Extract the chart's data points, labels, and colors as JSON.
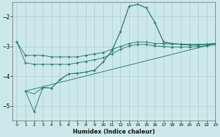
{
  "xlabel": "Humidex (Indice chaleur)",
  "bg_color": "#cce8ea",
  "grid_color": "#aacccc",
  "line_color": "#2a7a6a",
  "xlim": [
    -0.5,
    23
  ],
  "ylim": [
    -5.5,
    -1.5
  ],
  "yticks": [
    -5,
    -4,
    -3,
    -2
  ],
  "xticks": [
    0,
    1,
    2,
    3,
    4,
    5,
    6,
    7,
    8,
    9,
    10,
    11,
    12,
    13,
    14,
    15,
    16,
    17,
    18,
    19,
    20,
    21,
    22,
    23
  ],
  "line1_x": [
    0,
    1,
    2,
    3,
    4,
    5,
    6,
    7,
    8,
    9,
    10,
    11,
    12,
    13,
    14,
    15,
    16,
    17,
    18,
    19,
    20,
    21,
    22,
    23
  ],
  "line1_y": [
    -2.85,
    -3.3,
    -3.3,
    -3.3,
    -3.35,
    -3.35,
    -3.35,
    -3.35,
    -3.3,
    -3.25,
    -3.2,
    -3.1,
    -3.0,
    -2.9,
    -2.85,
    -2.85,
    -2.9,
    -2.9,
    -2.92,
    -2.92,
    -2.93,
    -2.93,
    -2.92,
    -2.9
  ],
  "line2_x": [
    0,
    1,
    2,
    3,
    4,
    5,
    6,
    7,
    8,
    9,
    10,
    11,
    12,
    13,
    14,
    15,
    16,
    17,
    18,
    19,
    20,
    21,
    22,
    23
  ],
  "line2_y": [
    -2.85,
    -3.55,
    -3.6,
    -3.6,
    -3.6,
    -3.6,
    -3.6,
    -3.55,
    -3.5,
    -3.45,
    -3.38,
    -3.25,
    -3.1,
    -2.98,
    -2.93,
    -2.93,
    -2.98,
    -3.0,
    -3.02,
    -3.02,
    -3.02,
    -3.0,
    -2.98,
    -2.93
  ],
  "line3_x": [
    1,
    2,
    3,
    4,
    5,
    6,
    7,
    8,
    9,
    10,
    11,
    12,
    13,
    14,
    15,
    16,
    17,
    18,
    19,
    20,
    21,
    22,
    23
  ],
  "line3_y": [
    -4.5,
    -5.2,
    -4.38,
    -4.4,
    -4.12,
    -3.92,
    -3.9,
    -3.86,
    -3.8,
    -3.52,
    -3.15,
    -2.5,
    -1.65,
    -1.58,
    -1.7,
    -2.2,
    -2.85,
    -2.9,
    -2.93,
    -2.95,
    -2.95,
    -2.93,
    -2.9
  ],
  "line4_x": [
    1,
    2,
    3,
    4,
    5,
    6,
    7,
    8,
    9,
    10,
    11,
    12,
    13,
    14,
    15,
    16,
    17,
    18,
    19,
    20,
    21,
    22,
    23
  ],
  "line4_y": [
    -4.5,
    -4.6,
    -4.38,
    -4.4,
    -4.12,
    -3.92,
    -3.9,
    -3.86,
    -3.8,
    -3.52,
    -3.15,
    -2.5,
    -1.65,
    -1.58,
    -1.7,
    -2.2,
    -2.85,
    -2.9,
    -2.93,
    -2.95,
    -2.95,
    -2.93,
    -2.9
  ]
}
